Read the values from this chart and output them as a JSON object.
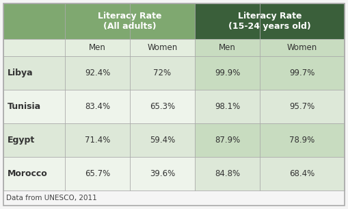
{
  "countries": [
    "Libya",
    "Tunisia",
    "Egypt",
    "Morocco"
  ],
  "col_headers_row1": [
    "Literacy Rate\n(All adults)",
    "Literacy Rate\n(15-24 years old)"
  ],
  "col_headers_row2": [
    "Men",
    "Women",
    "Men",
    "Women"
  ],
  "data": [
    [
      "92.4%",
      "72%",
      "99.9%",
      "99.7%"
    ],
    [
      "83.4%",
      "65.3%",
      "98.1%",
      "95.7%"
    ],
    [
      "71.4%",
      "59.4%",
      "87.9%",
      "78.9%"
    ],
    [
      "65.7%",
      "39.6%",
      "84.8%",
      "68.4%"
    ]
  ],
  "footnote": "Data from UNESCO, 2011",
  "header_bg_light": "#7fa870",
  "header_bg_dark": "#3a5f3a",
  "subheader_bg_light": "#e4eedf",
  "subheader_bg_dark": "#c8dcc0",
  "row_bg_odd": "#dde8d8",
  "row_bg_even": "#eef4eb",
  "row_dark_odd": "#c8dcc0",
  "row_dark_even": "#dde8d8",
  "header_text_color": "#ffffff",
  "data_text_color": "#333333",
  "footnote_color": "#444444",
  "border_color": "#aaaaaa",
  "fig_bg": "#f5f5f5"
}
